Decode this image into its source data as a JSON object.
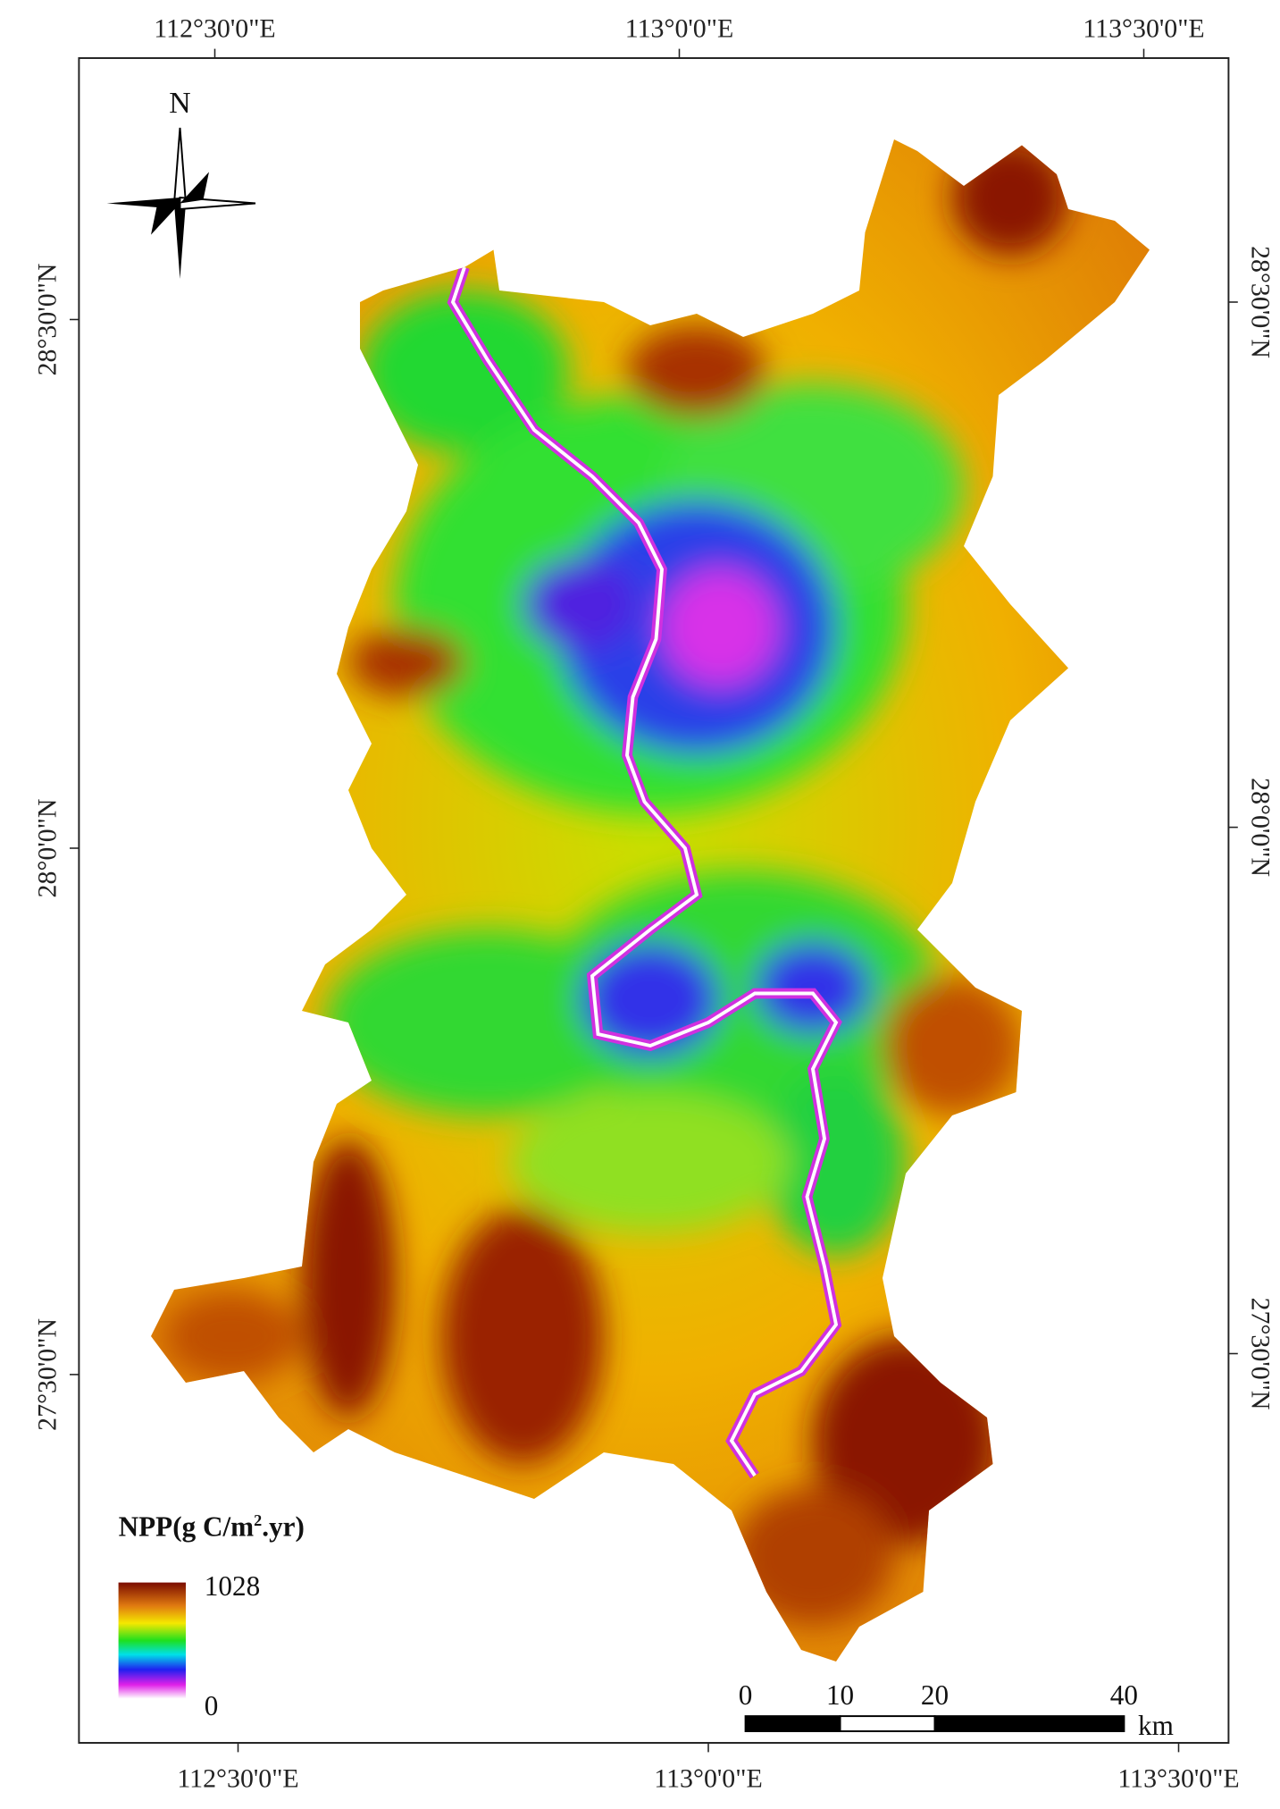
{
  "map": {
    "top_labels": [
      "112°30'0\"E",
      "113°0'0\"E",
      "113°30'0\"E"
    ],
    "bottom_labels": [
      "112°30'0\"E",
      "113°0'0\"E",
      "113°30'0\"E"
    ],
    "left_labels": [
      "28°30'0\"N",
      "28°0'0\"N",
      "27°30'0\"N"
    ],
    "right_labels": [
      "28°30'0\"N",
      "28°0'0\"N",
      "27°30'0\"N"
    ],
    "north": "N",
    "legend": {
      "title": "NPP(g C/m",
      "title_sup": "2",
      "title_end": ".yr)",
      "max": 1028,
      "min": 0
    },
    "scale_bar": {
      "ticks": [
        0,
        10,
        20,
        40
      ],
      "unit": "km"
    }
  }
}
